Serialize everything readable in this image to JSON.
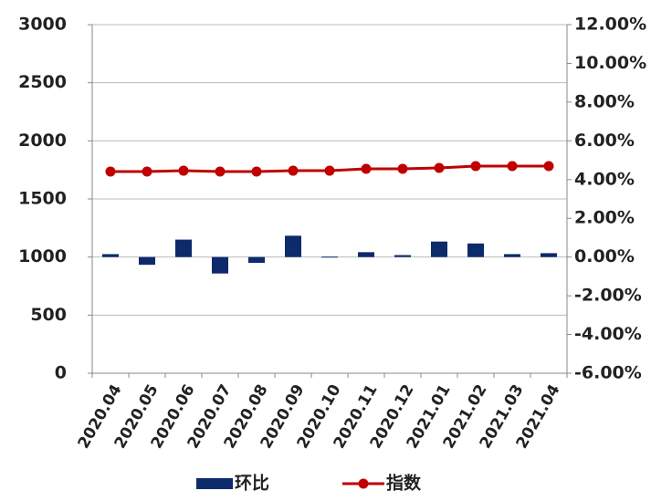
{
  "chart_data": {
    "type": "bar",
    "categories": [
      "2020.04",
      "2020.05",
      "2020.06",
      "2020.07",
      "2020.08",
      "2020.09",
      "2020.10",
      "2020.11",
      "2020.12",
      "2021.01",
      "2021.02",
      "2021.03",
      "2021.04"
    ],
    "series": [
      {
        "name": "环比",
        "type": "bar",
        "axis": "y2",
        "color": "#0d2a6b",
        "values": [
          0.15,
          -0.4,
          0.9,
          -0.85,
          -0.3,
          1.1,
          0.02,
          0.25,
          0.1,
          0.8,
          0.7,
          0.15,
          0.2
        ]
      },
      {
        "name": "指数",
        "type": "line",
        "color": "#c00000",
        "values": [
          1736,
          1736,
          1743,
          1736,
          1736,
          1743,
          1743,
          1759,
          1759,
          1767,
          1783,
          1783,
          1783
        ]
      }
    ],
    "ylim": [
      0,
      3000
    ],
    "yticks": [
      0,
      500,
      1000,
      1500,
      2000,
      2500,
      3000
    ],
    "y2lim": [
      -6,
      12
    ],
    "y2ticks": [
      {
        "value": -6,
        "label": "-6.00%"
      },
      {
        "value": -4,
        "label": "-4.00%"
      },
      {
        "value": -2,
        "label": "-2.00%"
      },
      {
        "value": 0,
        "label": "0.00%"
      },
      {
        "value": 2,
        "label": "2.00%"
      },
      {
        "value": 4,
        "label": "4.00%"
      },
      {
        "value": 6,
        "label": "6.00%"
      },
      {
        "value": 8,
        "label": "8.00%"
      },
      {
        "value": 10,
        "label": "10.00%"
      },
      {
        "value": 12,
        "label": "12.00%"
      }
    ],
    "grid": true
  }
}
